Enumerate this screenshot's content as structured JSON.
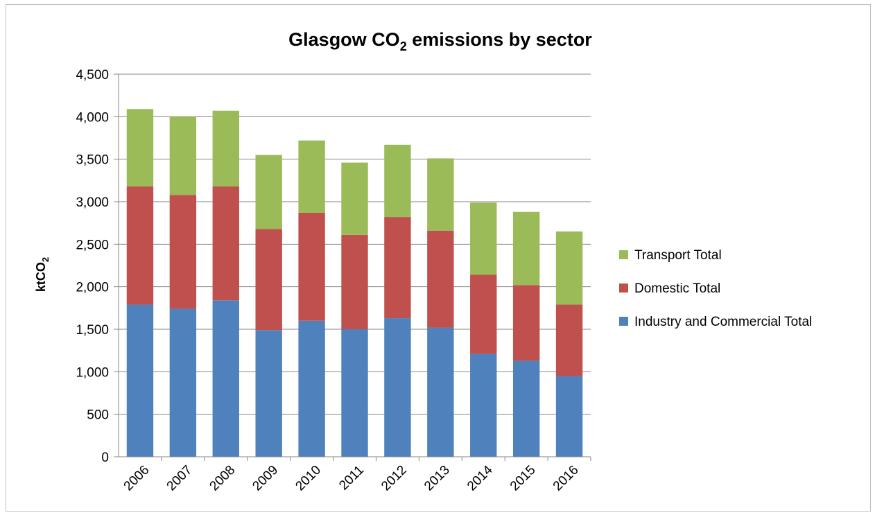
{
  "chart_data": {
    "type": "bar",
    "stacked": true,
    "title": "Glasgow CO2 emissions by sector",
    "title_main": "Glasgow CO",
    "title_sub": "2",
    "title_rest": " emissions by sector",
    "ylabel": "ktCO2",
    "ylabel_main": "ktCO",
    "ylabel_sub": "2",
    "xlabel": "",
    "ylim": [
      0,
      4500
    ],
    "yticks": [
      0,
      500,
      1000,
      1500,
      2000,
      2500,
      3000,
      3500,
      4000,
      4500
    ],
    "ytick_labels": [
      "0",
      "500",
      "1,000",
      "1,500",
      "2,000",
      "2,500",
      "3,000",
      "3,500",
      "4,000",
      "4,500"
    ],
    "grid": true,
    "legend_position": "right",
    "categories": [
      "2006",
      "2007",
      "2008",
      "2009",
      "2010",
      "2011",
      "2012",
      "2013",
      "2014",
      "2015",
      "2016"
    ],
    "series": [
      {
        "name": "Industry and Commercial Total",
        "color": "#4f81bd",
        "values": [
          1790,
          1740,
          1840,
          1490,
          1600,
          1500,
          1630,
          1520,
          1210,
          1130,
          950
        ]
      },
      {
        "name": "Domestic Total",
        "color": "#c0504d",
        "values": [
          1390,
          1340,
          1340,
          1190,
          1270,
          1110,
          1190,
          1140,
          930,
          890,
          840
        ]
      },
      {
        "name": "Transport Total",
        "color": "#9bbb59",
        "values": [
          910,
          920,
          890,
          870,
          850,
          850,
          850,
          850,
          850,
          860,
          860
        ]
      }
    ],
    "legend_order": [
      "Transport Total",
      "Domestic Total",
      "Industry and Commercial Total"
    ],
    "gridline_color": "#868686",
    "axis_color": "#868686"
  }
}
